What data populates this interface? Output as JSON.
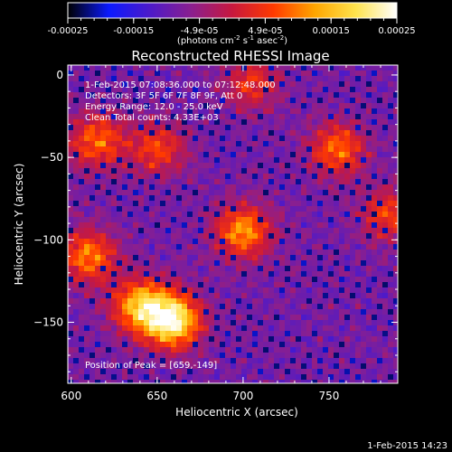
{
  "chart_data": {
    "type": "heatmap",
    "title": "Reconstructed RHESSI Image",
    "xlabel": "Heliocentric X (arcsec)",
    "ylabel": "Heliocentric Y (arcsec)",
    "xlim": [
      598,
      790
    ],
    "ylim": [
      -187,
      6
    ],
    "xticks": [
      600,
      650,
      700,
      750
    ],
    "yticks": [
      0,
      -50,
      -100,
      -150
    ],
    "colorbar": {
      "min": -0.00025,
      "max": 0.00025,
      "ticks": [
        "-0.00025",
        "-0.00015",
        "-4.9e-05",
        "4.9e-05",
        "0.00015",
        "0.00025"
      ],
      "unit_label_parts": [
        "(photons cm",
        "-2",
        " s",
        "-1",
        " asec",
        "-2",
        ")"
      ],
      "colors": [
        "#000000",
        "#0b1aff",
        "#4d1ac9",
        "#8a1f8f",
        "#c8183e",
        "#ff3a00",
        "#ffa500",
        "#ffe34d",
        "#ffffff"
      ]
    },
    "annotations": [
      "1-Feb-2015 07:08:36.000 to 07:12:48.000",
      "Detectors: 3F 5F 6F 7F 8F 9F, Att 0",
      "Energy Range: 12.0 - 25.0 keV",
      "Clean     Total counts: 4.33E+03"
    ],
    "peak_label": "Position of Peak = [659,-149]",
    "peak_position": [
      659,
      -149
    ],
    "bright_sources": [
      {
        "x": 659,
        "y": -149,
        "intensity": 1.0
      },
      {
        "x": 640,
        "y": -140,
        "intensity": 0.75
      },
      {
        "x": 700,
        "y": -95,
        "intensity": 0.65
      },
      {
        "x": 610,
        "y": -110,
        "intensity": 0.6
      },
      {
        "x": 755,
        "y": -45,
        "intensity": 0.55
      },
      {
        "x": 615,
        "y": -40,
        "intensity": 0.55
      },
      {
        "x": 650,
        "y": -45,
        "intensity": 0.45
      },
      {
        "x": 785,
        "y": -85,
        "intensity": 0.45
      },
      {
        "x": 705,
        "y": -5,
        "intensity": 0.4
      }
    ]
  },
  "footer_timestamp": "1-Feb-2015 14:23"
}
